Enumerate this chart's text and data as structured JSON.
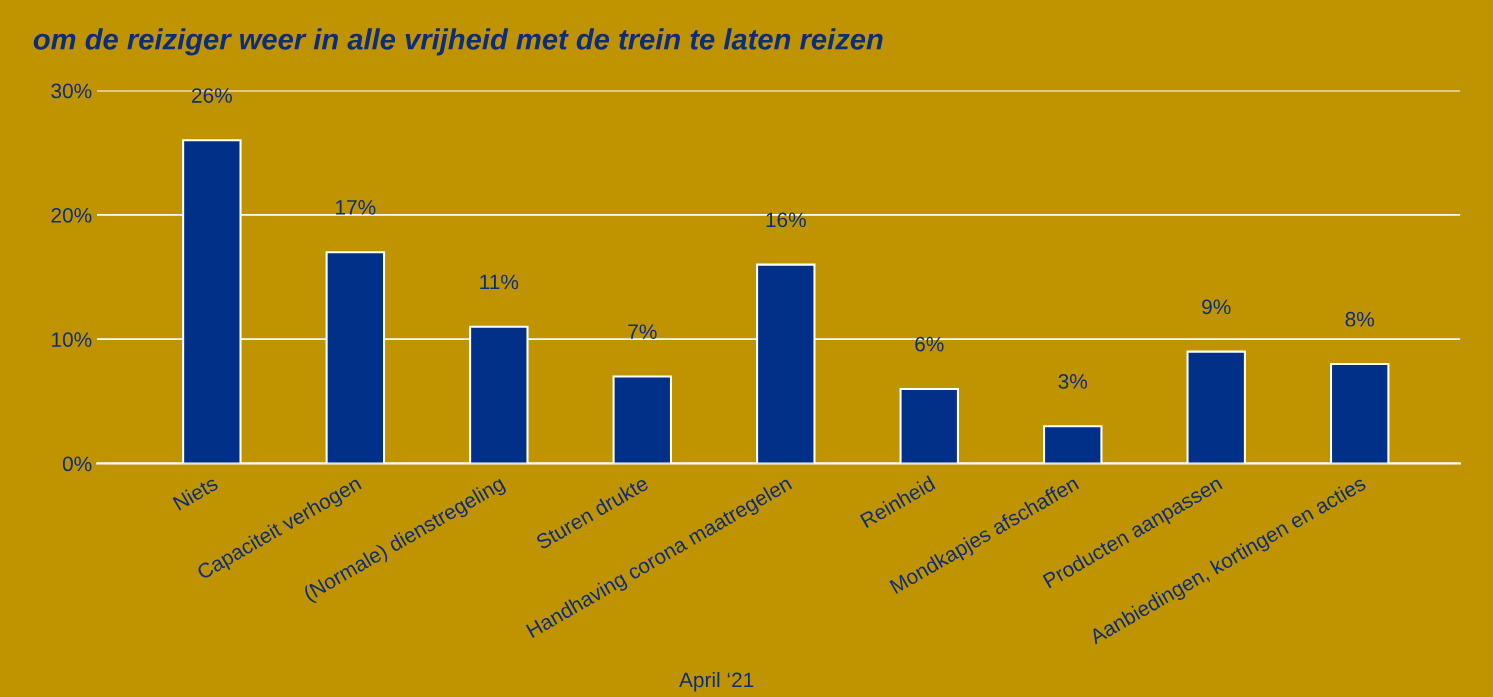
{
  "chart_data": {
    "type": "bar",
    "title": "om de reiziger weer in alle vrijheid met de trein te laten reizen",
    "xlabel": "April ‘21",
    "categories": [
      "Niets",
      "Capaciteit verhogen",
      "(Normale) dienstregeling",
      "Sturen drukte",
      "Handhaving corona maatregelen",
      "Reinheid",
      "Mondkapjes afschaffen",
      "Producten aanpassen",
      "Aanbiedingen, kortingen en acties"
    ],
    "values": [
      26,
      17,
      11,
      7,
      16,
      6,
      3,
      9,
      8
    ],
    "value_labels": [
      "26%",
      "17%",
      "11%",
      "7%",
      "16%",
      "6%",
      "3%",
      "9%",
      "8%"
    ],
    "color": "#003087",
    "ylim": [
      0,
      30
    ],
    "yticks": [
      {
        "value": 0,
        "label": "0%"
      },
      {
        "value": 10,
        "label": "10%"
      },
      {
        "value": 20,
        "label": "20%"
      },
      {
        "value": 30,
        "label": "30%"
      }
    ],
    "grid": "y",
    "legend": false
  }
}
